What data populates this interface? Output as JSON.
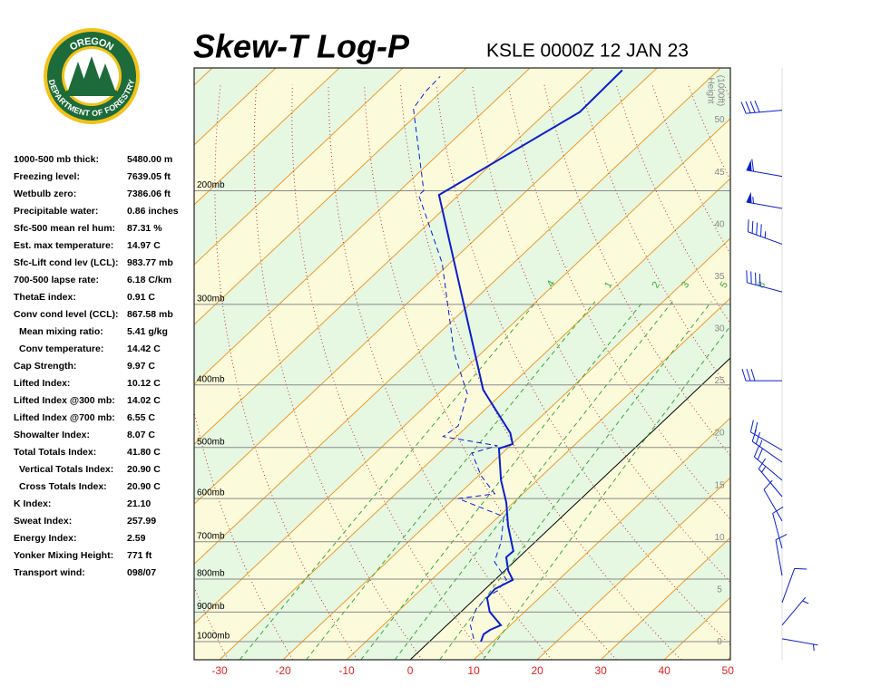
{
  "header": {
    "logo_top": "OREGON",
    "logo_bottom": "DEPARTMENT OF FORESTRY"
  },
  "indices": [
    [
      "1000-500 mb thick:",
      "5480.00 m"
    ],
    [
      "Freezing level:",
      "7639.05 ft"
    ],
    [
      "Wetbulb zero:",
      "7386.06 ft"
    ],
    [
      "Precipitable water:",
      "0.86 inches"
    ],
    [
      "Sfc-500 mean rel hum:",
      "87.31 %"
    ],
    [
      "Est. max temperature:",
      "14.97 C"
    ],
    [
      "Sfc-Lift cond lev (LCL):",
      "983.77 mb"
    ],
    [
      "700-500 lapse rate:",
      "6.18 C/km"
    ],
    [
      "ThetaE index:",
      "0.91 C"
    ],
    [
      "Conv cond level (CCL):",
      "867.58 mb"
    ],
    [
      "Mean mixing ratio:",
      "5.41 g/kg"
    ],
    [
      "Conv temperature:",
      "14.42 C"
    ],
    [
      "Cap Strength:",
      "9.97 C"
    ],
    [
      "Lifted Index:",
      "10.12 C"
    ],
    [
      "Lifted Index @300 mb:",
      "14.02 C"
    ],
    [
      "Lifted Index @700 mb:",
      "6.55 C"
    ],
    [
      "Showalter Index:",
      "8.07 C"
    ],
    [
      "Total Totals Index:",
      "41.80 C"
    ],
    [
      "Vertical Totals Index:",
      "20.90 C"
    ],
    [
      "Cross Totals Index:",
      "20.90 C"
    ],
    [
      "K Index:",
      "21.10"
    ],
    [
      "Sweat Index:",
      "257.99"
    ],
    [
      "Energy Index:",
      "2.59"
    ],
    [
      "Yonker Mixing Height:",
      "771 ft"
    ],
    [
      "Transport wind:",
      "098/07"
    ]
  ],
  "chart_data": {
    "type": "skew-t",
    "title": "Skew-T Log-P",
    "subtitle": "KSLE 0000Z 12 JAN 23",
    "xlim": [
      -34,
      50.4
    ],
    "xticks": [
      -30,
      -20,
      -10,
      0,
      10,
      20,
      30,
      40,
      50
    ],
    "ylim": [
      1067,
      129
    ],
    "log_y": true,
    "yticks": [
      {
        "value": 1000,
        "label": "1000mb"
      },
      {
        "value": 900,
        "label": "900mb"
      },
      {
        "value": 800,
        "label": "800mb"
      },
      {
        "value": 700,
        "label": "700mb"
      },
      {
        "value": 600,
        "label": "600mb"
      },
      {
        "value": 500,
        "label": "500mb"
      },
      {
        "value": 400,
        "label": "400mb"
      },
      {
        "value": 300,
        "label": "300mb"
      },
      {
        "value": 200,
        "label": "200mb"
      }
    ],
    "y2label": [
      "Height",
      "(1000ft)"
    ],
    "y2lim": [
      -1.7,
      55
    ],
    "y2ticks": [
      0,
      5,
      10,
      15,
      20,
      25,
      30,
      35,
      40,
      45,
      50
    ],
    "mixing_ratios": [
      {
        "value": 0.4,
        "label": ".4"
      },
      1,
      2,
      3,
      5,
      8
    ],
    "series": [
      {
        "color": "#0a1ed0",
        "dashed": false,
        "pressure": [
          1000,
          974,
          959,
          943,
          899,
          856,
          829,
          802,
          777,
          740,
          724,
          661,
          609,
          562,
          502,
          494,
          475,
          407,
          203,
          151,
          130
        ],
        "values": [
          8.1,
          7.3,
          7.6,
          8.5,
          4.5,
          1.8,
          1.5,
          2.8,
          0.6,
          -2.0,
          -1.9,
          -7.0,
          -11.1,
          -15.7,
          -21.3,
          -19.9,
          -22.1,
          -33.6,
          -73.1,
          -64.8,
          -65.1
        ]
      },
      {
        "color": "#0a1ed0",
        "dashed": true,
        "pressure": [
          990,
          943,
          890,
          856,
          834,
          802,
          752,
          700,
          640,
          600,
          590,
          553,
          510,
          497,
          481,
          463,
          413,
          357,
          259,
          220,
          203,
          200,
          149,
          140,
          133
        ],
        "values": [
          6.5,
          3.7,
          1.9,
          1.6,
          2.2,
          1.8,
          -3.1,
          -5.4,
          -9.2,
          -19.4,
          -14.4,
          -19.6,
          -24.8,
          -22.0,
          -32.1,
          -31.5,
          -35.4,
          -44.3,
          -61.2,
          -71.3,
          -76.3,
          -76.2,
          -91.6,
          -92.5,
          -92.7
        ]
      }
    ],
    "winds": [
      {
        "pressure": 150,
        "direction": 265,
        "speed": 40
      },
      {
        "pressure": 190,
        "direction": 280,
        "speed": 60
      },
      {
        "pressure": 213,
        "direction": 280,
        "speed": 55
      },
      {
        "pressure": 242,
        "direction": 290,
        "speed": 45
      },
      {
        "pressure": 287,
        "direction": 285,
        "speed": 40
      },
      {
        "pressure": 394,
        "direction": 270,
        "speed": 30
      },
      {
        "pressure": 505,
        "direction": 300,
        "speed": 20
      },
      {
        "pressure": 527,
        "direction": 305,
        "speed": 25
      },
      {
        "pressure": 562,
        "direction": 310,
        "speed": 20
      },
      {
        "pressure": 596,
        "direction": 320,
        "speed": 15
      },
      {
        "pressure": 650,
        "direction": 330,
        "speed": 10
      },
      {
        "pressure": 717,
        "direction": 345,
        "speed": 10
      },
      {
        "pressure": 790,
        "direction": 350,
        "speed": 10
      },
      {
        "pressure": 870,
        "direction": 20,
        "speed": 10
      },
      {
        "pressure": 943,
        "direction": 40,
        "speed": 5
      },
      {
        "pressure": 990,
        "direction": 100,
        "speed": 5
      }
    ]
  }
}
